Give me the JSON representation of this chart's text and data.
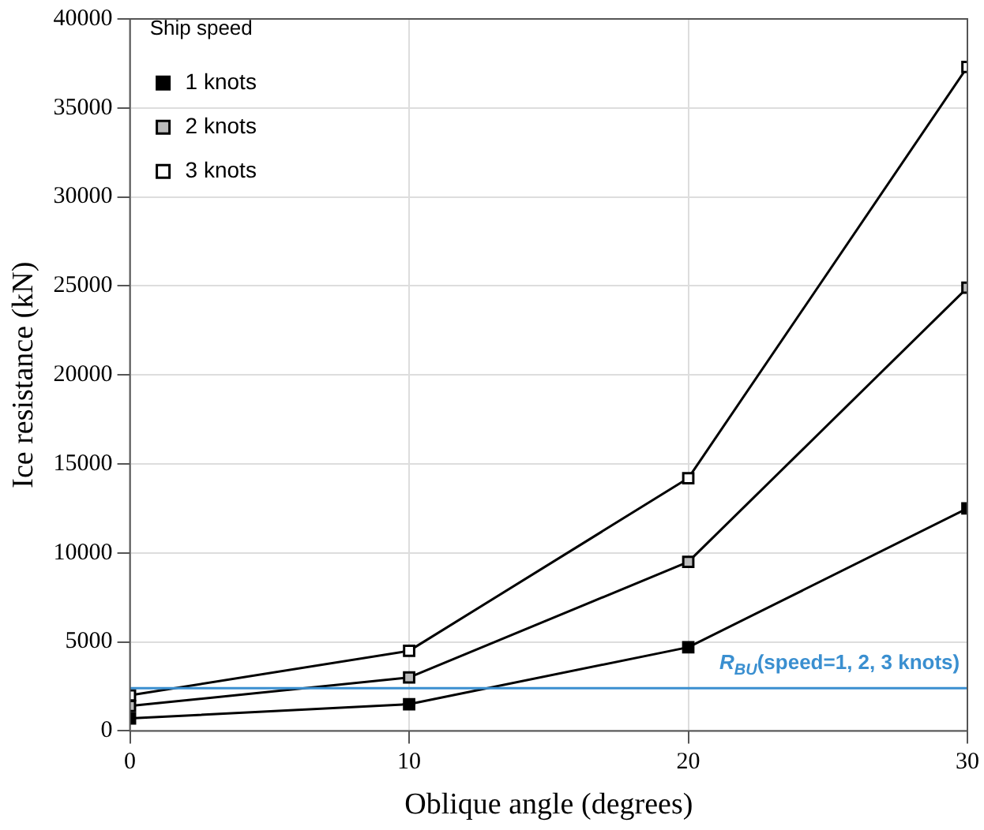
{
  "chart_data": {
    "type": "line",
    "xlabel": "Oblique angle (degrees)",
    "ylabel": "Ice resistance (kN)",
    "legend_title": "Ship speed",
    "x": [
      0,
      10,
      20,
      30
    ],
    "series": [
      {
        "name": "1 knots",
        "color": "#000000",
        "values": [
          700,
          1500,
          4700,
          12500
        ]
      },
      {
        "name": "2 knots",
        "color": "#000000",
        "values": [
          1400,
          3000,
          9500,
          24900
        ]
      },
      {
        "name": "3 knots",
        "color": "#000000",
        "values": [
          2000,
          4500,
          14200,
          37300
        ]
      }
    ],
    "xlim": [
      0,
      30
    ],
    "xticks": [
      0,
      10,
      20,
      30
    ],
    "ylim": [
      0,
      40000
    ],
    "yticks": [
      0,
      5000,
      10000,
      15000,
      20000,
      25000,
      30000,
      35000,
      40000
    ],
    "ref_lines": [
      {
        "axis": "y",
        "value": 2400,
        "color": "#3a8fd0"
      }
    ],
    "annotations": [
      {
        "text": "R$_{BU}$(speed=1, 2, 3 knots)",
        "x": 30,
        "y": 2400
      }
    ],
    "grid": true,
    "legend": "top left",
    "marker": "square",
    "line_style": "solid"
  }
}
